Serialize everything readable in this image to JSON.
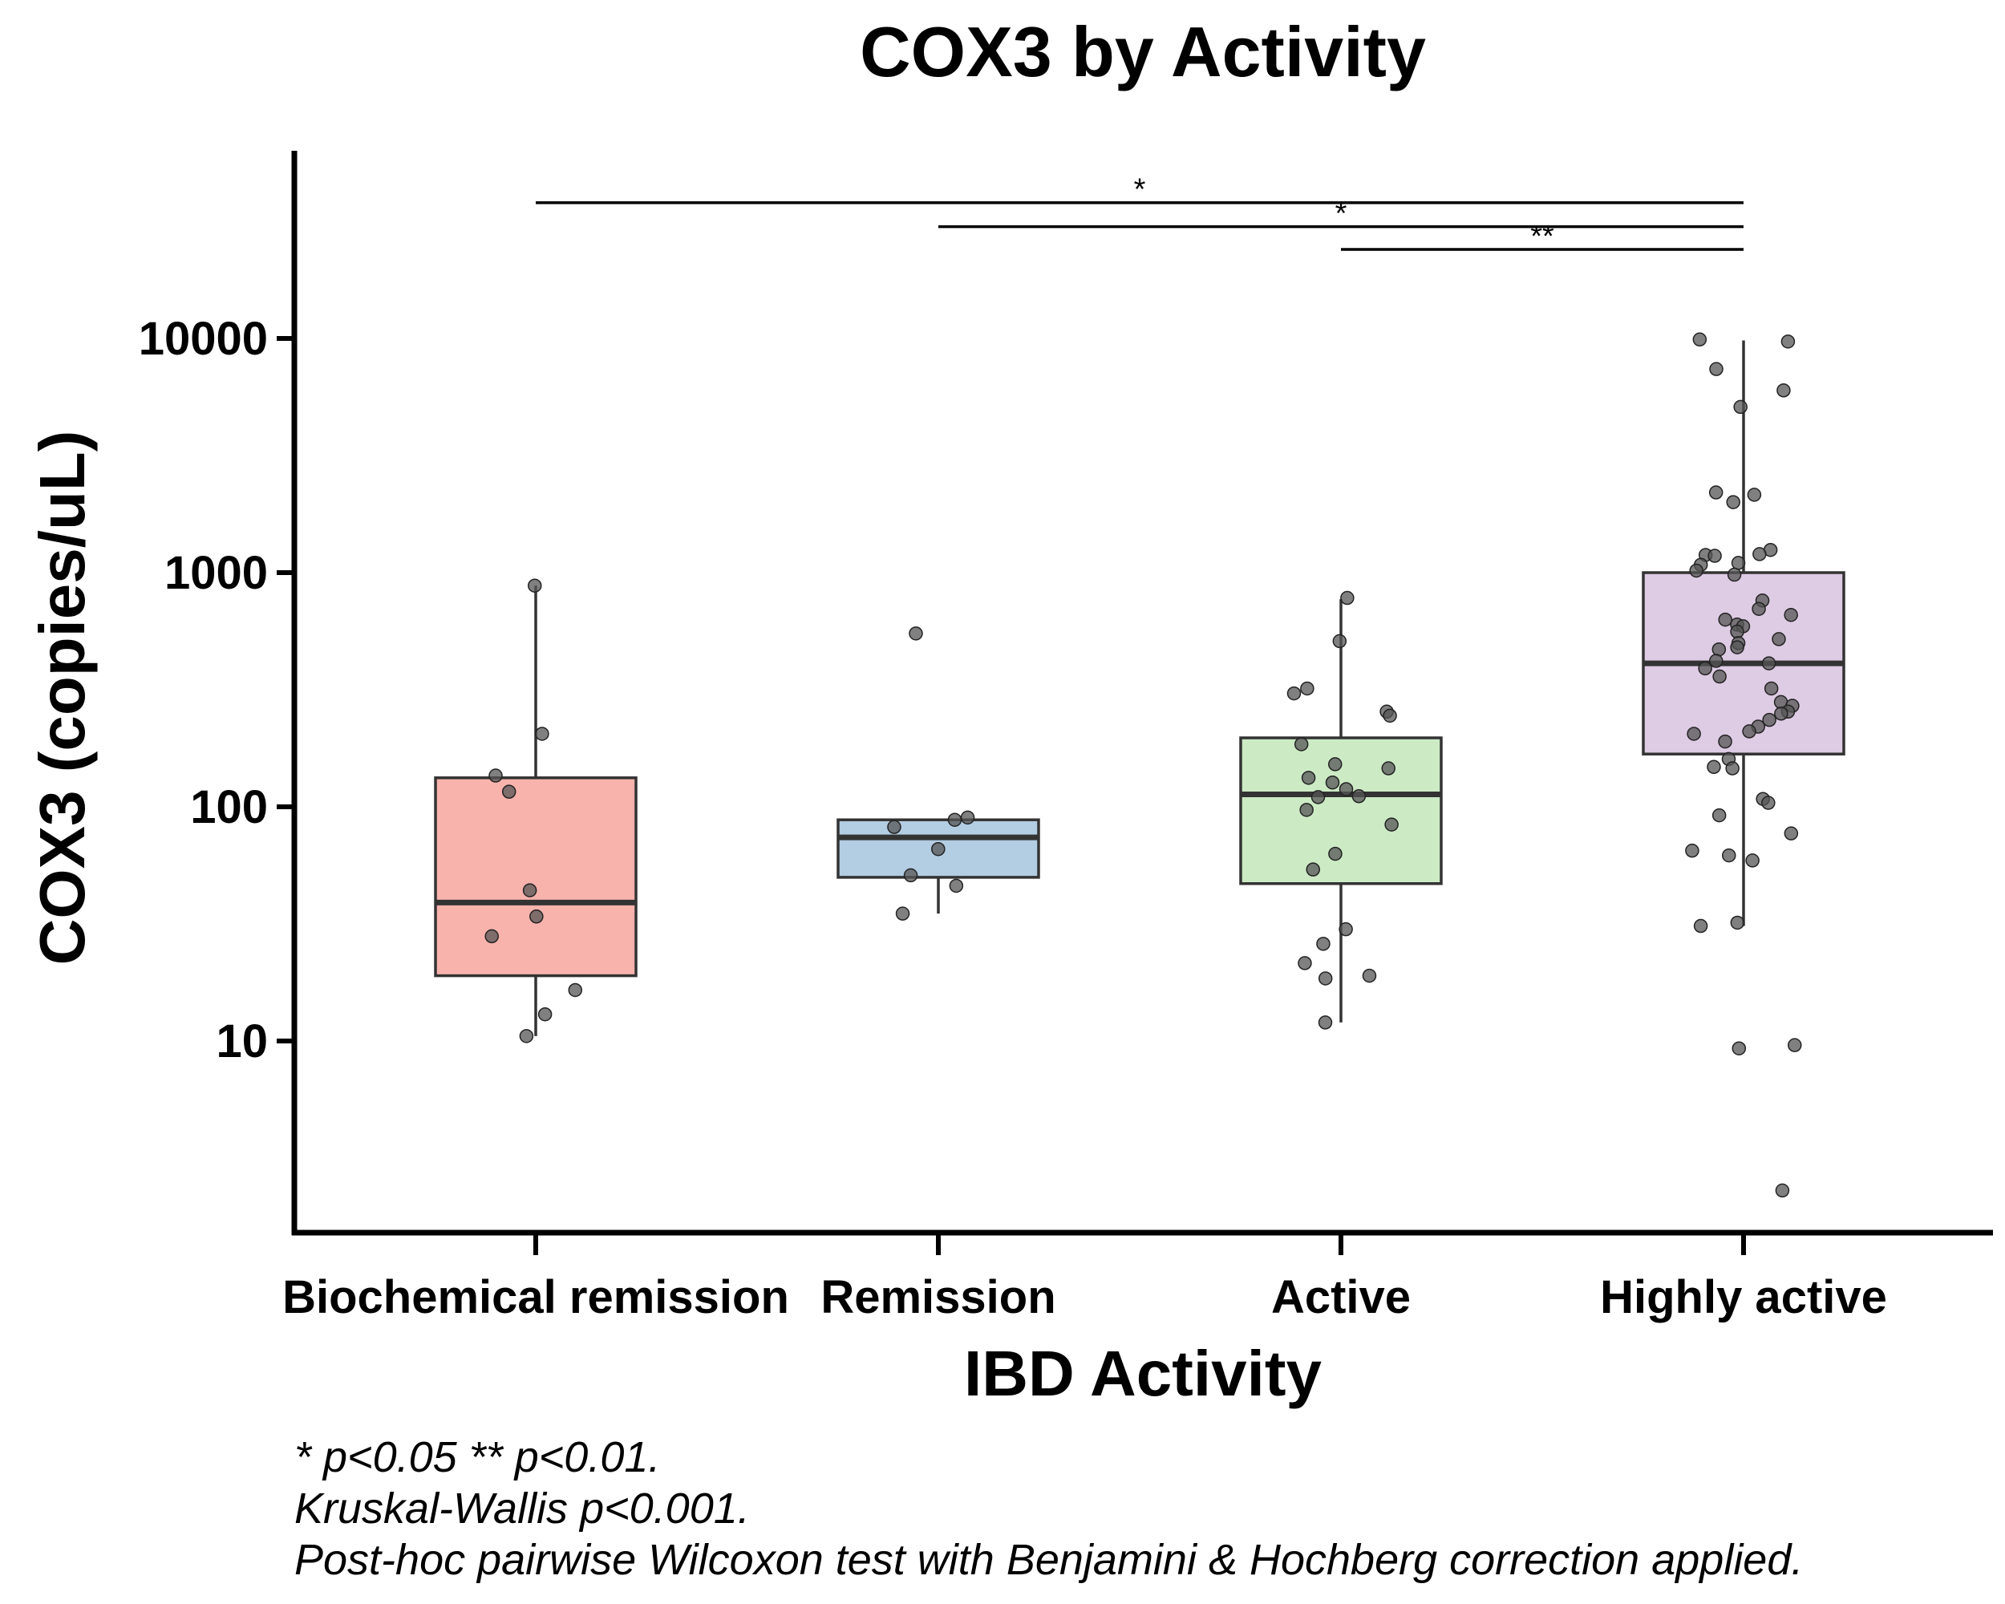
{
  "chart_data": {
    "type": "box",
    "title": "COX3 by Activity",
    "xlabel": "IBD Activity",
    "ylabel": "COX3 (copies/uL)",
    "y_scale": "log10",
    "ylim": [
      1.5,
      70000
    ],
    "yticks": [
      10,
      100,
      1000,
      10000
    ],
    "ytick_labels": [
      "10",
      "100",
      "1000",
      "10000"
    ],
    "categories": [
      "Biochemical remission",
      "Remission",
      "Active",
      "Highly active"
    ],
    "groups": [
      {
        "name": "Biochemical remission",
        "color": "#f8b3ad",
        "box": {
          "whisker_low": 10.5,
          "q1": 19,
          "median": 39,
          "q3": 133,
          "whisker_high": 880
        },
        "points": [
          880,
          205,
          136,
          116,
          44,
          34,
          28,
          16.5,
          13,
          10.5
        ]
      },
      {
        "name": "Remission",
        "color": "#b3cde3",
        "box": {
          "whisker_low": 35,
          "q1": 50,
          "median": 74,
          "q3": 88,
          "whisker_high": 88
        },
        "points": [
          550,
          90,
          88,
          82,
          66,
          51,
          46,
          35
        ]
      },
      {
        "name": "Active",
        "color": "#ccebc5",
        "box": {
          "whisker_low": 12,
          "q1": 47,
          "median": 113,
          "q3": 197,
          "whisker_high": 770
        },
        "points": [
          780,
          510,
          320,
          305,
          255,
          245,
          185,
          152,
          146,
          133,
          127,
          119,
          111,
          110,
          97,
          84,
          63,
          54,
          30,
          26,
          21.5,
          19,
          18.5,
          12
        ]
      },
      {
        "name": "Highly active",
        "color": "#decbe4",
        "box": {
          "whisker_low": 31,
          "q1": 168,
          "median": 410,
          "q3": 1000,
          "whisker_high": 9800
        },
        "points": [
          9900,
          9700,
          7400,
          6000,
          5100,
          2200,
          2150,
          2000,
          1250,
          1200,
          1190,
          1180,
          1100,
          1080,
          1020,
          980,
          760,
          700,
          660,
          630,
          600,
          590,
          560,
          520,
          500,
          480,
          470,
          420,
          410,
          390,
          360,
          320,
          280,
          270,
          255,
          250,
          235,
          220,
          210,
          205,
          190,
          160,
          148,
          146,
          108,
          104,
          92,
          77,
          65,
          62,
          59,
          32,
          31,
          9.6,
          9.3,
          2.3
        ]
      }
    ],
    "significance_brackets": [
      {
        "from": "Biochemical remission",
        "to": "Highly active",
        "y": 38000,
        "label": "*"
      },
      {
        "from": "Remission",
        "to": "Highly active",
        "y": 30000,
        "label": "*"
      },
      {
        "from": "Active",
        "to": "Highly active",
        "y": 24000,
        "label": "**"
      }
    ],
    "notes": [
      "* p<0.05 ** p<0.01.",
      "Kruskal-Wallis p<0.001.",
      "Post-hoc pairwise Wilcoxon test with Benjamini & Hochberg correction applied."
    ],
    "point_color": "#555555",
    "grid": false,
    "legend": "none"
  }
}
